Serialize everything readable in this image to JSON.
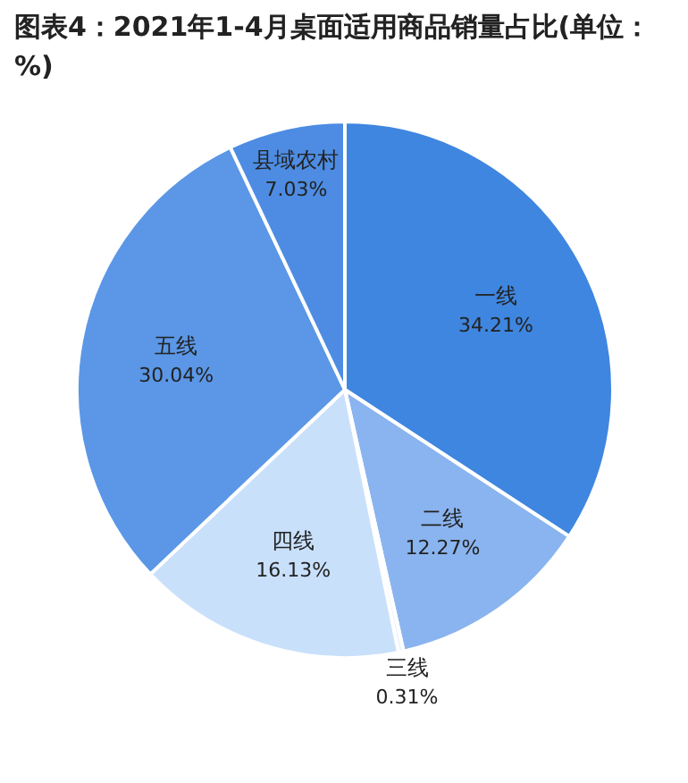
{
  "chart_data": {
    "type": "pie",
    "title": "图表4：2021年1-4月桌面适用商品销量占比(单位：%)",
    "categories": [
      "一线",
      "二线",
      "三线",
      "四线",
      "五线",
      "县域农村"
    ],
    "values": [
      34.21,
      12.27,
      0.31,
      16.13,
      30.04,
      7.03
    ],
    "value_labels": [
      "34.21%",
      "12.27%",
      "0.31%",
      "16.13%",
      "30.04%",
      "7.03%"
    ],
    "colors": [
      "#3f86e0",
      "#8ab4ef",
      "#e9f1fc",
      "#c9e0fb",
      "#5b97e6",
      "#4d8ce2"
    ]
  }
}
